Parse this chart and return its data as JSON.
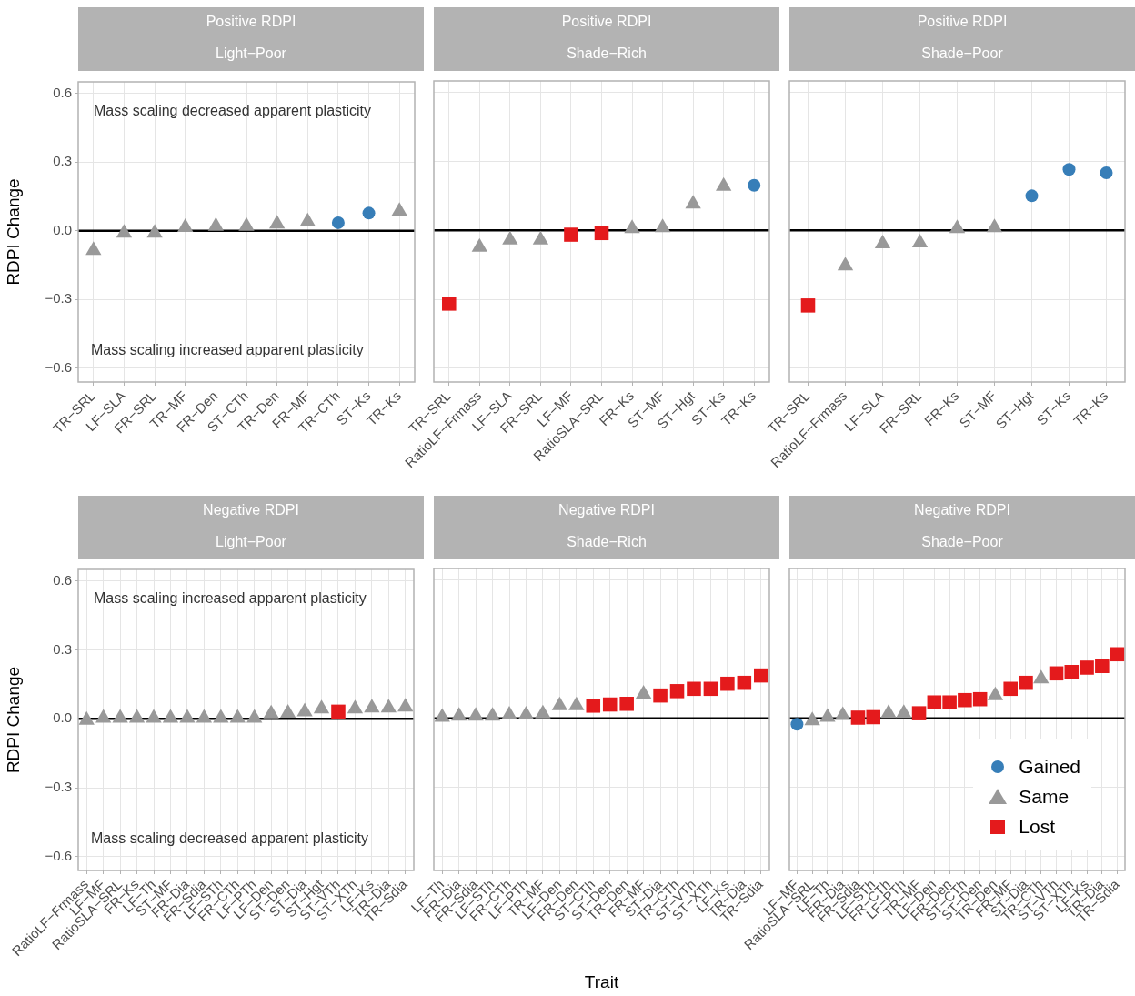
{
  "chart_data": [
    {
      "type": "scatter",
      "title": "Positive RDPI",
      "subtitle": "Light−Poor",
      "ylabel": "RDPI Change",
      "categories": [
        "TR−SRL",
        "LF−SLA",
        "FR−SRL",
        "TR−MF",
        "FR−Den",
        "ST−CTh",
        "TR−Den",
        "FR−MF",
        "TR−CTh",
        "ST−Ks",
        "TR−Ks"
      ],
      "series": [
        {
          "color": "#377eb8",
          "marker": "circle",
          "values": [
            null,
            null,
            null,
            null,
            null,
            null,
            null,
            null,
            0.035,
            0.077,
            null
          ]
        },
        {
          "color": "#999999",
          "marker": "triangle",
          "values": [
            -0.085,
            -0.01,
            -0.01,
            0.015,
            0.02,
            0.02,
            0.03,
            0.04,
            null,
            null,
            0.085
          ]
        }
      ],
      "ylim": [
        -0.66,
        0.65
      ],
      "yticks": [
        {
          "value": -0.6,
          "label": "−0.6"
        },
        {
          "value": -0.3,
          "label": "−0.3"
        },
        {
          "value": 0,
          "label": "0.0"
        },
        {
          "value": 0.3,
          "label": "0.3"
        },
        {
          "value": 0.6,
          "label": "0.6"
        }
      ],
      "grid": true,
      "ref_lines": [
        {
          "axis": "y",
          "value": 0,
          "color": "#000000"
        }
      ],
      "annotations": [
        "Mass scaling decreased apparent plasticity",
        "Mass scaling increased apparent plasticity"
      ]
    },
    {
      "type": "scatter",
      "title": "Positive RDPI",
      "subtitle": "Shade−Rich",
      "tick_labels": "x",
      "categories": [
        "TR−SRL",
        "RatioLF−Frmass",
        "LF−SLA",
        "FR−SRL",
        "LF−MF",
        "RatioSLA−SRL",
        "FR−Ks",
        "ST−MF",
        "ST−Hgt",
        "ST−Ks",
        "TR−Ks"
      ],
      "series": [
        {
          "color": "#377eb8",
          "marker": "circle",
          "values": [
            null,
            null,
            null,
            null,
            null,
            null,
            null,
            null,
            null,
            null,
            0.196
          ]
        },
        {
          "color": "#999999",
          "marker": "triangle",
          "values": [
            null,
            -0.073,
            -0.042,
            -0.042,
            null,
            null,
            0.008,
            0.012,
            0.115,
            0.192,
            null
          ]
        },
        {
          "color": "#e41a1c",
          "marker": "square",
          "values": [
            -0.319,
            null,
            null,
            null,
            -0.019,
            -0.012,
            null,
            null,
            null,
            null,
            null
          ]
        }
      ],
      "ylim": [
        -0.66,
        0.65
      ],
      "yticks": [
        {
          "value": -0.6,
          "label": null
        },
        {
          "value": -0.3,
          "label": null
        },
        {
          "value": 0,
          "label": null
        },
        {
          "value": 0.3,
          "label": null
        },
        {
          "value": 0.6,
          "label": null
        }
      ],
      "grid": true,
      "ref_lines": [
        {
          "axis": "y",
          "value": 0,
          "color": "#000000"
        }
      ]
    },
    {
      "type": "scatter",
      "title": "Positive RDPI",
      "subtitle": "Shade−Poor",
      "tick_labels": "x",
      "categories": [
        "TR−SRL",
        "RatioLF−Frmass",
        "LF−SLA",
        "FR−SRL",
        "FR−Ks",
        "ST−MF",
        "ST−Hgt",
        "ST−Ks",
        "TR−Ks"
      ],
      "series": [
        {
          "color": "#377eb8",
          "marker": "circle",
          "values": [
            null,
            null,
            null,
            null,
            null,
            null,
            0.15,
            0.265,
            0.25
          ]
        },
        {
          "color": "#999999",
          "marker": "triangle",
          "values": [
            null,
            -0.154,
            -0.058,
            -0.054,
            0.008,
            0.012,
            null,
            null,
            null
          ]
        },
        {
          "color": "#e41a1c",
          "marker": "square",
          "values": [
            -0.327,
            null,
            null,
            null,
            null,
            null,
            null,
            null,
            null
          ]
        }
      ],
      "ylim": [
        -0.66,
        0.65
      ],
      "yticks": [
        {
          "value": -0.6,
          "label": null
        },
        {
          "value": -0.3,
          "label": null
        },
        {
          "value": 0,
          "label": null
        },
        {
          "value": 0.3,
          "label": null
        },
        {
          "value": 0.6,
          "label": null
        }
      ],
      "grid": true,
      "ref_lines": [
        {
          "axis": "y",
          "value": 0,
          "color": "#000000"
        }
      ]
    },
    {
      "type": "scatter",
      "title": "Negative RDPI",
      "subtitle": "Light−Poor",
      "ylabel": "RDPI Change",
      "categories": [
        "RatioLF−Frmass",
        "LF−MF",
        "RatioSLA−SRL",
        "FR−Ks",
        "LF−Th",
        "ST−MF",
        "FR−Dia",
        "FR−Sdia",
        "LF−STh",
        "FR−CTh",
        "LF−PTh",
        "LF−Den",
        "ST−Den",
        "ST−Dia",
        "ST−Hgt",
        "ST−VTh",
        "ST−XTh",
        "LF−Ks",
        "TR−Dia",
        "TR−Sdia"
      ],
      "series": [
        {
          "color": "#999999",
          "marker": "triangle",
          "values": [
            -0.006,
            0.003,
            0.003,
            0.003,
            0.003,
            0.003,
            0.003,
            0.003,
            0.003,
            0.003,
            0.003,
            0.022,
            0.025,
            0.031,
            0.043,
            null,
            0.043,
            0.047,
            0.047,
            0.051
          ]
        },
        {
          "color": "#e41a1c",
          "marker": "square",
          "values": [
            null,
            null,
            null,
            null,
            null,
            null,
            null,
            null,
            null,
            null,
            null,
            null,
            null,
            null,
            null,
            0.031,
            null,
            null,
            null,
            null
          ]
        }
      ],
      "ylim": [
        -0.66,
        0.65
      ],
      "yticks": [
        {
          "value": -0.6,
          "label": "−0.6"
        },
        {
          "value": -0.3,
          "label": "−0.3"
        },
        {
          "value": 0,
          "label": "0.0"
        },
        {
          "value": 0.3,
          "label": "0.3"
        },
        {
          "value": 0.6,
          "label": "0.6"
        }
      ],
      "grid": true,
      "ref_lines": [
        {
          "axis": "y",
          "value": 0,
          "color": "#000000"
        }
      ],
      "annotations": [
        "Mass scaling increased apparent plasticity",
        "Mass scaling decreased apparent plasticity"
      ]
    },
    {
      "type": "scatter",
      "title": "Negative RDPI",
      "subtitle": "Shade−Rich",
      "xlabel": "Trait",
      "tick_labels": "x",
      "categories": [
        "LF−Th",
        "FR−Dia",
        "FR−Sdia",
        "LF−STh",
        "FR−CTh",
        "LF−PTh",
        "TR−MF",
        "LF−Den",
        "FR−Den",
        "ST−CTh",
        "ST−Den",
        "TR−Den",
        "FR−MF",
        "ST−Dia",
        "TR−CTh",
        "ST−VTh",
        "ST−XTh",
        "LF−Ks",
        "TR−Dia",
        "TR−Sdia"
      ],
      "series": [
        {
          "color": "#999999",
          "marker": "triangle",
          "values": [
            0.005,
            0.01,
            0.01,
            0.01,
            0.015,
            0.015,
            0.02,
            0.055,
            0.055,
            null,
            null,
            null,
            0.105,
            null,
            null,
            null,
            null,
            null,
            null,
            null
          ]
        },
        {
          "color": "#e41a1c",
          "marker": "square",
          "values": [
            null,
            null,
            null,
            null,
            null,
            null,
            null,
            null,
            null,
            0.055,
            0.06,
            0.063,
            null,
            0.099,
            0.118,
            0.128,
            0.128,
            0.15,
            0.154,
            0.186
          ]
        }
      ],
      "ylim": [
        -0.66,
        0.65
      ],
      "yticks": [
        {
          "value": -0.6,
          "label": null
        },
        {
          "value": -0.3,
          "label": null
        },
        {
          "value": 0,
          "label": null
        },
        {
          "value": 0.3,
          "label": null
        },
        {
          "value": 0.6,
          "label": null
        }
      ],
      "grid": true,
      "ref_lines": [
        {
          "axis": "y",
          "value": 0,
          "color": "#000000"
        }
      ]
    },
    {
      "type": "scatter",
      "title": "Negative RDPI",
      "subtitle": "Shade−Poor",
      "tick_labels": "x",
      "legend": "bottom right",
      "categories": [
        "LF−MF",
        "RatioSLA−SRL",
        "LF−Th",
        "FR−Dia",
        "FR−Sdia",
        "LF−STh",
        "FR−CTh",
        "LF−PTh",
        "TR−MF",
        "LF−Den",
        "FR−Den",
        "ST−CTh",
        "ST−Den",
        "TR−Den",
        "FR−MF",
        "ST−Dia",
        "TR−CTh",
        "ST−VTh",
        "ST−XTh",
        "LF−Ks",
        "TR−Dia",
        "TR−Sdia"
      ],
      "series": [
        {
          "name": "Gained",
          "color": "#377eb8",
          "marker": "circle",
          "values": [
            -0.026,
            null,
            null,
            null,
            null,
            null,
            null,
            null,
            null,
            null,
            null,
            null,
            null,
            null,
            null,
            null,
            null,
            null,
            null,
            null,
            null,
            null
          ]
        },
        {
          "name": "Same",
          "color": "#999999",
          "marker": "triangle",
          "values": [
            null,
            -0.01,
            0.005,
            0.013,
            null,
            null,
            0.022,
            0.022,
            null,
            null,
            null,
            null,
            null,
            0.099,
            null,
            null,
            0.172,
            null,
            null,
            null,
            null,
            null
          ]
        },
        {
          "name": "Lost",
          "color": "#e41a1c",
          "marker": "square",
          "values": [
            null,
            null,
            null,
            null,
            0.003,
            0.005,
            null,
            null,
            0.022,
            0.069,
            0.069,
            0.079,
            0.083,
            null,
            0.128,
            0.154,
            null,
            0.195,
            0.201,
            0.22,
            0.227,
            0.278
          ]
        }
      ],
      "ylim": [
        -0.66,
        0.65
      ],
      "yticks": [
        {
          "value": -0.6,
          "label": null
        },
        {
          "value": -0.3,
          "label": null
        },
        {
          "value": 0,
          "label": null
        },
        {
          "value": 0.3,
          "label": null
        },
        {
          "value": 0.6,
          "label": null
        }
      ],
      "grid": true,
      "ref_lines": [
        {
          "axis": "y",
          "value": 0,
          "color": "#000000"
        }
      ]
    }
  ]
}
